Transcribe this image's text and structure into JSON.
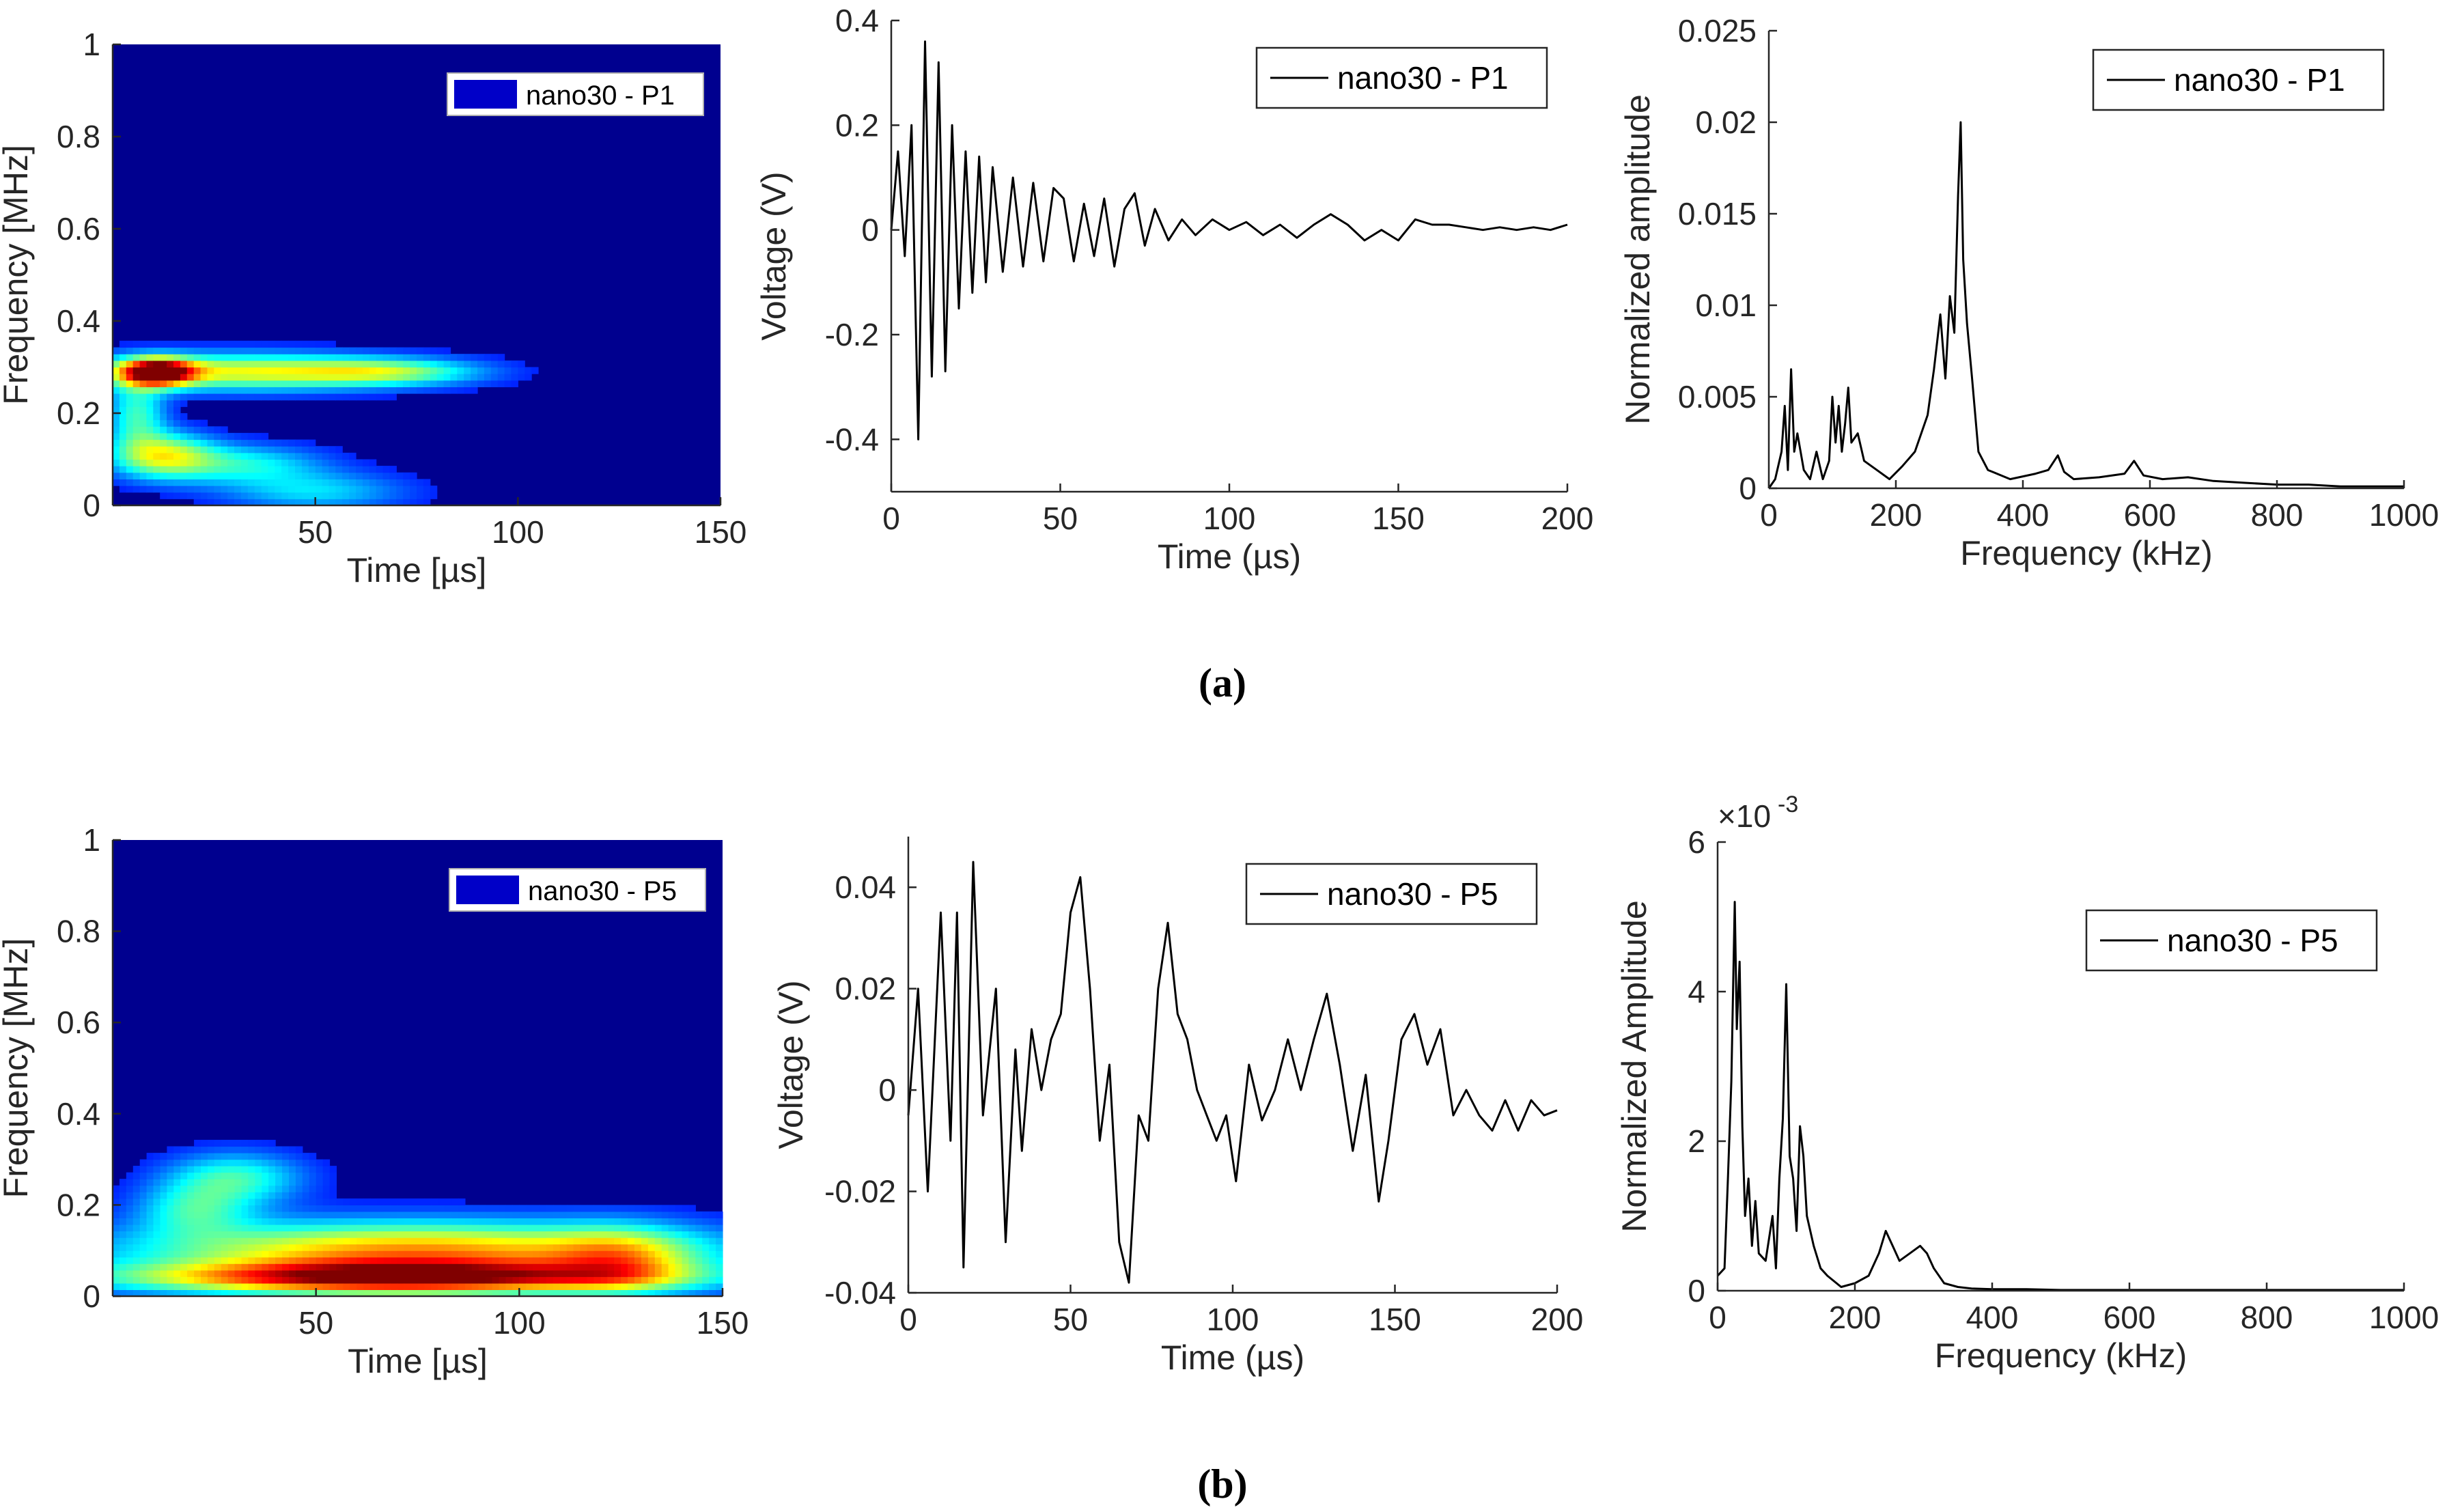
{
  "figure": {
    "caption_a": "(a)",
    "caption_b": "(b)"
  },
  "colors": {
    "line": "#000000",
    "axis": "#262626",
    "jet_low": "#00008f",
    "jet_high": "#800000"
  },
  "chart_data": [
    {
      "id": "a_spectrogram",
      "type": "heatmap",
      "xlabel": "Time [µs]",
      "ylabel": "Frequency [MHz]",
      "xlim": [
        0,
        150
      ],
      "ylim": [
        0,
        1
      ],
      "xticks": [
        "50",
        "100",
        "150"
      ],
      "xtick_values": [
        50,
        100,
        150
      ],
      "yticks": [
        "0",
        "0.2",
        "0.4",
        "0.6",
        "0.8",
        "1"
      ],
      "ytick_values": [
        0,
        0.2,
        0.4,
        0.6,
        0.8,
        1
      ],
      "legend": "nano30 - P1",
      "blobs": [
        {
          "t": 30,
          "f": 0.29,
          "st": 28,
          "sf": 0.028,
          "a": 0.55
        },
        {
          "t": 68,
          "f": 0.29,
          "st": 16,
          "sf": 0.02,
          "a": 0.35
        },
        {
          "t": 11,
          "f": 0.29,
          "st": 6,
          "sf": 0.02,
          "a": 0.95
        },
        {
          "t": 6,
          "f": 0.2,
          "st": 5,
          "sf": 0.05,
          "a": 0.35
        },
        {
          "t": 12,
          "f": 0.11,
          "st": 9,
          "sf": 0.035,
          "a": 0.5
        },
        {
          "t": 32,
          "f": 0.09,
          "st": 14,
          "sf": 0.03,
          "a": 0.3
        },
        {
          "t": 50,
          "f": 0.03,
          "st": 16,
          "sf": 0.03,
          "a": 0.25
        }
      ]
    },
    {
      "id": "a_voltage",
      "type": "line",
      "xlabel": "Time (µs)",
      "ylabel": "Voltage (V)",
      "xlim": [
        0,
        200
      ],
      "ylim": [
        -0.5,
        0.4
      ],
      "xticks": [
        "0",
        "50",
        "100",
        "150",
        "200"
      ],
      "xtick_values": [
        0,
        50,
        100,
        150,
        200
      ],
      "yticks": [
        "-0.4",
        "-0.2",
        "0",
        "0.2",
        "0.4"
      ],
      "ytick_values": [
        -0.4,
        -0.2,
        0,
        0.2,
        0.4
      ],
      "legend": "nano30 - P1",
      "series": [
        {
          "name": "nano30 - P1",
          "x": [
            0,
            2,
            4,
            6,
            8,
            10,
            12,
            14,
            16,
            18,
            20,
            22,
            24,
            26,
            28,
            30,
            33,
            36,
            39,
            42,
            45,
            48,
            51,
            54,
            57,
            60,
            63,
            66,
            69,
            72,
            75,
            78,
            82,
            86,
            90,
            95,
            100,
            105,
            110,
            115,
            120,
            125,
            130,
            135,
            140,
            145,
            150,
            155,
            160,
            165,
            170,
            175,
            180,
            185,
            190,
            195,
            200
          ],
          "y": [
            0,
            0.15,
            -0.05,
            0.2,
            -0.4,
            0.36,
            -0.28,
            0.32,
            -0.27,
            0.2,
            -0.15,
            0.15,
            -0.12,
            0.14,
            -0.1,
            0.12,
            -0.08,
            0.1,
            -0.07,
            0.09,
            -0.06,
            0.08,
            0.06,
            -0.06,
            0.05,
            -0.05,
            0.06,
            -0.07,
            0.04,
            0.07,
            -0.03,
            0.04,
            -0.02,
            0.02,
            -0.01,
            0.02,
            0.0,
            0.015,
            -0.01,
            0.01,
            -0.015,
            0.01,
            0.03,
            0.01,
            -0.02,
            0.0,
            -0.02,
            0.02,
            0.01,
            0.01,
            0.005,
            0.0,
            0.005,
            0.0,
            0.005,
            0.0,
            0.01
          ]
        }
      ]
    },
    {
      "id": "a_fft",
      "type": "line",
      "xlabel": "Frequency (kHz)",
      "ylabel": "Normalized amplitude",
      "xlim": [
        0,
        1000
      ],
      "ylim": [
        0,
        0.025
      ],
      "xticks": [
        "0",
        "200",
        "400",
        "600",
        "800",
        "1000"
      ],
      "xtick_values": [
        0,
        200,
        400,
        600,
        800,
        1000
      ],
      "yticks": [
        "0",
        "0.005",
        "0.01",
        "0.015",
        "0.02",
        "0.025"
      ],
      "ytick_values": [
        0,
        0.005,
        0.01,
        0.015,
        0.02,
        0.025
      ],
      "legend": "nano30 - P1",
      "series": [
        {
          "name": "nano30 - P1",
          "x": [
            0,
            10,
            20,
            25,
            30,
            35,
            40,
            45,
            55,
            65,
            75,
            85,
            95,
            100,
            105,
            110,
            115,
            120,
            125,
            130,
            140,
            150,
            170,
            190,
            210,
            230,
            250,
            260,
            270,
            278,
            285,
            292,
            298,
            302,
            306,
            312,
            320,
            330,
            345,
            380,
            420,
            440,
            455,
            465,
            480,
            520,
            560,
            575,
            590,
            620,
            660,
            700,
            750,
            800,
            850,
            900,
            950,
            1000
          ],
          "y": [
            0,
            0.0005,
            0.002,
            0.0045,
            0.001,
            0.0065,
            0.002,
            0.003,
            0.001,
            0.0005,
            0.002,
            0.0005,
            0.0015,
            0.005,
            0.0025,
            0.0045,
            0.002,
            0.0035,
            0.0055,
            0.0025,
            0.003,
            0.0015,
            0.001,
            0.0005,
            0.0012,
            0.002,
            0.004,
            0.0065,
            0.0095,
            0.006,
            0.0105,
            0.0085,
            0.016,
            0.02,
            0.0125,
            0.009,
            0.006,
            0.002,
            0.001,
            0.0005,
            0.0008,
            0.001,
            0.0018,
            0.0009,
            0.0005,
            0.0006,
            0.0008,
            0.0015,
            0.0007,
            0.0005,
            0.0006,
            0.0004,
            0.0003,
            0.0002,
            0.0002,
            0.0001,
            0.0001,
            0.0001
          ]
        }
      ]
    },
    {
      "id": "b_spectrogram",
      "type": "heatmap",
      "xlabel": "Time [µs]",
      "ylabel": "Frequency [MHz]",
      "xlim": [
        0,
        150
      ],
      "ylim": [
        0,
        1
      ],
      "xticks": [
        "50",
        "100",
        "150"
      ],
      "xtick_values": [
        50,
        100,
        150
      ],
      "yticks": [
        "0",
        "0.2",
        "0.4",
        "0.6",
        "0.8",
        "1"
      ],
      "ytick_values": [
        0,
        0.2,
        0.4,
        0.6,
        0.8,
        1
      ],
      "legend": "nano30 - P5",
      "blobs": [
        {
          "t": 75,
          "f": 0.1,
          "st": 48,
          "sf": 0.045,
          "a": 0.7
        },
        {
          "t": 70,
          "f": 0.04,
          "st": 45,
          "sf": 0.025,
          "a": 0.9
        },
        {
          "t": 30,
          "f": 0.26,
          "st": 12,
          "sf": 0.04,
          "a": 0.35
        },
        {
          "t": 20,
          "f": 0.19,
          "st": 10,
          "sf": 0.04,
          "a": 0.3
        },
        {
          "t": 125,
          "f": 0.08,
          "st": 12,
          "sf": 0.05,
          "a": 0.35
        }
      ]
    },
    {
      "id": "b_voltage",
      "type": "line",
      "xlabel": "Time (µs)",
      "ylabel": "Voltage (V)",
      "xlim": [
        0,
        200
      ],
      "ylim": [
        -0.04,
        0.05
      ],
      "xticks": [
        "0",
        "50",
        "100",
        "150",
        "200"
      ],
      "xtick_values": [
        0,
        50,
        100,
        150,
        200
      ],
      "yticks": [
        "-0.04",
        "-0.02",
        "0",
        "0.02",
        "0.04"
      ],
      "ytick_values": [
        -0.04,
        -0.02,
        0,
        0.02,
        0.04
      ],
      "legend": "nano30 - P5",
      "series": [
        {
          "name": "nano30 - P5",
          "x": [
            0,
            3,
            6,
            10,
            13,
            15,
            17,
            20,
            23,
            27,
            30,
            33,
            35,
            38,
            41,
            44,
            47,
            50,
            53,
            56,
            59,
            62,
            65,
            68,
            71,
            74,
            77,
            80,
            83,
            86,
            89,
            92,
            95,
            98,
            101,
            105,
            109,
            113,
            117,
            121,
            125,
            129,
            133,
            137,
            141,
            145,
            148,
            152,
            156,
            160,
            164,
            168,
            172,
            176,
            180,
            184,
            188,
            192,
            196,
            200
          ],
          "y": [
            -0.005,
            0.02,
            -0.02,
            0.035,
            -0.01,
            0.035,
            -0.035,
            0.045,
            -0.005,
            0.02,
            -0.03,
            0.008,
            -0.012,
            0.012,
            0.0,
            0.01,
            0.015,
            0.035,
            0.042,
            0.02,
            -0.01,
            0.005,
            -0.03,
            -0.038,
            -0.005,
            -0.01,
            0.02,
            0.033,
            0.015,
            0.01,
            0.0,
            -0.005,
            -0.01,
            -0.005,
            -0.018,
            0.005,
            -0.006,
            0.0,
            0.01,
            0.0,
            0.01,
            0.019,
            0.005,
            -0.012,
            0.003,
            -0.022,
            -0.01,
            0.01,
            0.015,
            0.005,
            0.012,
            -0.005,
            0.0,
            -0.005,
            -0.008,
            -0.002,
            -0.008,
            -0.002,
            -0.005,
            -0.004
          ]
        }
      ]
    },
    {
      "id": "b_fft",
      "type": "line",
      "xlabel": "Frequency (kHz)",
      "ylabel": "Normalized Amplitude",
      "xlim": [
        0,
        1000
      ],
      "ylim": [
        0,
        6
      ],
      "exponent_label": "×10",
      "exponent_value": "-3",
      "xticks": [
        "0",
        "200",
        "400",
        "600",
        "800",
        "1000"
      ],
      "xtick_values": [
        0,
        200,
        400,
        600,
        800,
        1000
      ],
      "yticks": [
        "0",
        "2",
        "4",
        "6"
      ],
      "ytick_values": [
        0,
        2,
        4,
        6
      ],
      "legend": "nano30 - P5",
      "series": [
        {
          "name": "nano30 - P5",
          "x": [
            0,
            10,
            15,
            20,
            25,
            28,
            32,
            36,
            40,
            45,
            50,
            55,
            60,
            70,
            80,
            85,
            90,
            95,
            100,
            105,
            110,
            115,
            120,
            125,
            130,
            140,
            150,
            160,
            180,
            200,
            220,
            235,
            245,
            255,
            265,
            280,
            295,
            305,
            315,
            330,
            350,
            370,
            400,
            450,
            500,
            600,
            700,
            800,
            900,
            1000
          ],
          "y": [
            0.2,
            0.3,
            1.5,
            2.8,
            5.2,
            3.5,
            4.4,
            2.2,
            1.0,
            1.5,
            0.6,
            1.2,
            0.5,
            0.4,
            1.0,
            0.3,
            1.5,
            2.3,
            4.1,
            1.8,
            1.5,
            0.8,
            2.2,
            1.8,
            1.0,
            0.6,
            0.3,
            0.2,
            0.05,
            0.1,
            0.2,
            0.5,
            0.8,
            0.6,
            0.4,
            0.5,
            0.6,
            0.5,
            0.3,
            0.1,
            0.05,
            0.03,
            0.02,
            0.02,
            0.01,
            0.01,
            0.01,
            0.01,
            0.01,
            0.01
          ]
        }
      ]
    }
  ]
}
